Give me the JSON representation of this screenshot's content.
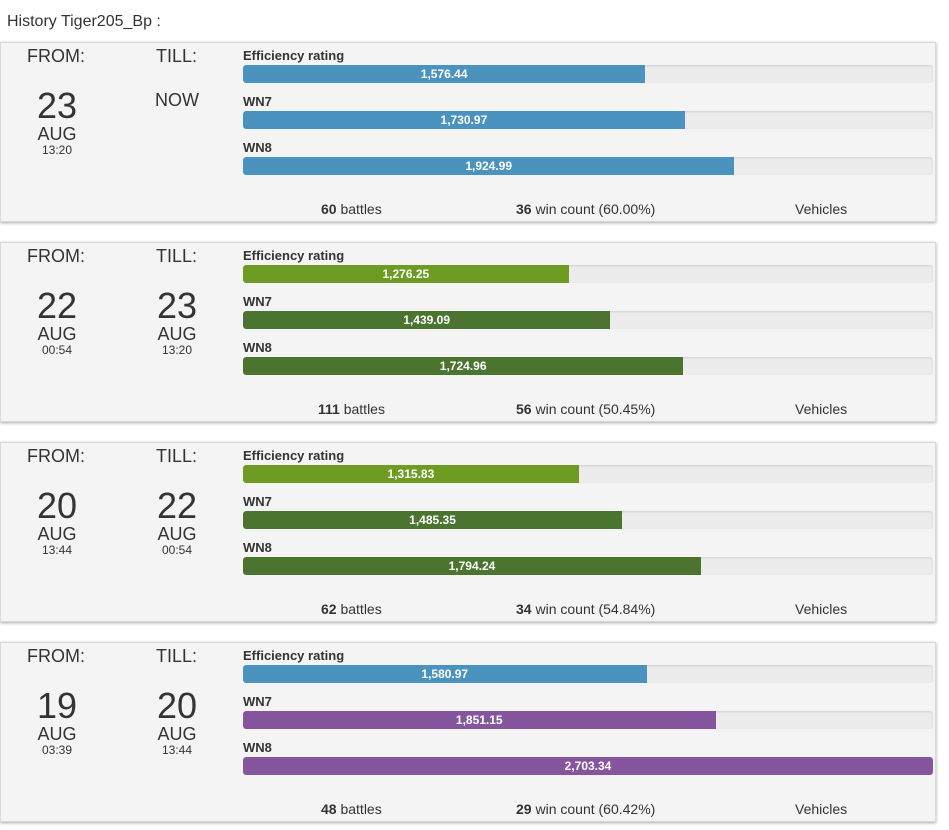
{
  "page": {
    "title": "History Tiger205_Bp :"
  },
  "labels": {
    "from": "FROM:",
    "till": "TILL:",
    "efficiency": "Efficiency rating",
    "wn7": "WN7",
    "wn8": "WN8",
    "battles_suffix": "battles",
    "wins_suffix": "win count",
    "vehicles": "Vehicles"
  },
  "colors": {
    "blue": "#4a93bf",
    "light_green": "#6e9c23",
    "dark_green": "#4a7430",
    "purple": "#85569e"
  },
  "bar_max": 2703.34,
  "entries": [
    {
      "from": {
        "day": "23",
        "month": "AUG",
        "time": "13:20"
      },
      "till": {
        "now": "NOW"
      },
      "efficiency": {
        "value": 1576.44,
        "text": "1,576.44",
        "color": "blue"
      },
      "wn7": {
        "value": 1730.97,
        "text": "1,730.97",
        "color": "blue"
      },
      "wn8": {
        "value": 1924.99,
        "text": "1,924.99",
        "color": "blue"
      },
      "battles": "60",
      "wins": "36",
      "win_pct": "(60.00%)"
    },
    {
      "from": {
        "day": "22",
        "month": "AUG",
        "time": "00:54"
      },
      "till": {
        "day": "23",
        "month": "AUG",
        "time": "13:20"
      },
      "efficiency": {
        "value": 1276.25,
        "text": "1,276.25",
        "color": "light_green"
      },
      "wn7": {
        "value": 1439.09,
        "text": "1,439.09",
        "color": "dark_green"
      },
      "wn8": {
        "value": 1724.96,
        "text": "1,724.96",
        "color": "dark_green"
      },
      "battles": "111",
      "wins": "56",
      "win_pct": "(50.45%)"
    },
    {
      "from": {
        "day": "20",
        "month": "AUG",
        "time": "13:44"
      },
      "till": {
        "day": "22",
        "month": "AUG",
        "time": "00:54"
      },
      "efficiency": {
        "value": 1315.83,
        "text": "1,315.83",
        "color": "light_green"
      },
      "wn7": {
        "value": 1485.35,
        "text": "1,485.35",
        "color": "dark_green"
      },
      "wn8": {
        "value": 1794.24,
        "text": "1,794.24",
        "color": "dark_green"
      },
      "battles": "62",
      "wins": "34",
      "win_pct": "(54.84%)"
    },
    {
      "from": {
        "day": "19",
        "month": "AUG",
        "time": "03:39"
      },
      "till": {
        "day": "20",
        "month": "AUG",
        "time": "13:44"
      },
      "efficiency": {
        "value": 1580.97,
        "text": "1,580.97",
        "color": "blue"
      },
      "wn7": {
        "value": 1851.15,
        "text": "1,851.15",
        "color": "purple"
      },
      "wn8": {
        "value": 2703.34,
        "text": "2,703.34",
        "color": "purple"
      },
      "battles": "48",
      "wins": "29",
      "win_pct": "(60.42%)"
    }
  ]
}
